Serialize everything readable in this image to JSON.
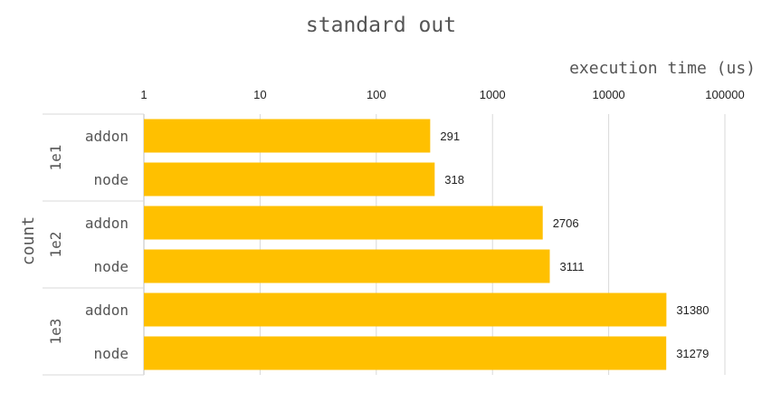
{
  "chart_data": {
    "type": "bar",
    "orientation": "horizontal",
    "title": "standard out",
    "xlabel": "execution time (us)",
    "ylabel": "count",
    "xscale": "log",
    "xlim": [
      1,
      100000
    ],
    "x_ticks": [
      {
        "value": 1,
        "label": "1"
      },
      {
        "value": 10,
        "label": "10"
      },
      {
        "value": 100,
        "label": "100"
      },
      {
        "value": 1000,
        "label": "1000"
      },
      {
        "value": 10000,
        "label": "10000"
      },
      {
        "value": 100000,
        "label": "100000"
      }
    ],
    "groups": [
      {
        "label": "1e1",
        "bars": [
          {
            "label": "addon",
            "value": 291,
            "value_label": "291"
          },
          {
            "label": "node",
            "value": 318,
            "value_label": "318"
          }
        ]
      },
      {
        "label": "1e2",
        "bars": [
          {
            "label": "addon",
            "value": 2706,
            "value_label": "2706"
          },
          {
            "label": "node",
            "value": 3111,
            "value_label": "3111"
          }
        ]
      },
      {
        "label": "1e3",
        "bars": [
          {
            "label": "addon",
            "value": 31380,
            "value_label": "31380"
          },
          {
            "label": "node",
            "value": 31279,
            "value_label": "31279"
          }
        ]
      }
    ],
    "bar_color": "#FFC000",
    "grid": true,
    "legend": "none"
  }
}
